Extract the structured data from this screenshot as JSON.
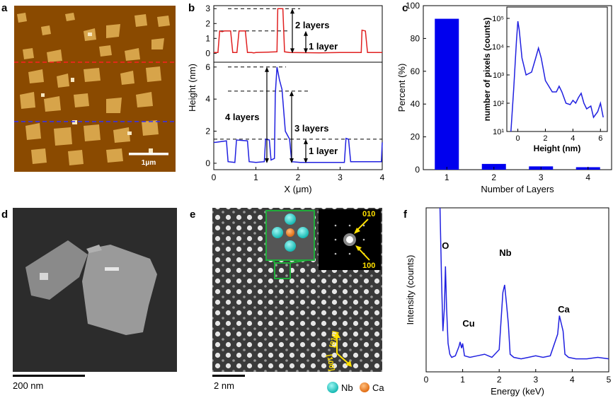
{
  "panels": {
    "a": {
      "label": "a",
      "scalebar": "1μm"
    },
    "b": {
      "label": "b"
    },
    "c": {
      "label": "c"
    },
    "d": {
      "label": "d",
      "scalebar": "200 nm"
    },
    "e": {
      "label": "e",
      "scalebar": "2 nm",
      "saed_010": "010",
      "saed_100": "100",
      "dir_010": "[010]",
      "dir_100": "[100]",
      "legend_nb": "Nb",
      "legend_ca": "Ca"
    },
    "f": {
      "label": "f"
    }
  },
  "chart_data": [
    {
      "id": "b",
      "type": "line",
      "xlabel": "X (μm)",
      "ylabel": "Height (nm)",
      "xlim": [
        0,
        4
      ],
      "xticks": [
        "0",
        "1",
        "2",
        "3",
        "4"
      ],
      "top": {
        "ylim": [
          -0.6,
          3.2
        ],
        "yticks": [
          "0",
          "1",
          "2",
          "3"
        ],
        "color": "#e02020",
        "x": [
          0,
          0.1,
          0.14,
          0.2,
          0.25,
          0.4,
          0.45,
          0.55,
          0.6,
          0.75,
          0.8,
          0.9,
          0.95,
          1.0,
          1.3,
          1.5,
          1.52,
          1.64,
          1.68,
          1.8,
          2.5,
          3.0,
          3.5,
          3.52,
          3.6,
          3.65,
          3.8,
          4.0
        ],
        "y": [
          0.05,
          0.05,
          1.5,
          1.45,
          1.5,
          1.5,
          0.05,
          0.05,
          1.5,
          1.5,
          0.05,
          0.05,
          0.02,
          0.05,
          0.08,
          0.1,
          3.0,
          3.0,
          0.1,
          0.05,
          0.03,
          0.05,
          0.05,
          1.55,
          1.5,
          0.05,
          0.05,
          0.05
        ],
        "annotations": [
          "2 layers",
          "1 layer"
        ]
      },
      "bottom": {
        "ylim": [
          -0.4,
          6.3
        ],
        "yticks": [
          "0",
          "2",
          "4",
          "6"
        ],
        "color": "#2020e0",
        "x": [
          0,
          0.04,
          0.3,
          0.34,
          0.5,
          0.54,
          0.8,
          0.84,
          1.0,
          1.2,
          1.23,
          1.32,
          1.36,
          1.44,
          1.46,
          1.5,
          1.56,
          1.62,
          1.7,
          1.76,
          1.8,
          1.85,
          2.05,
          2.1,
          3.1,
          3.14,
          3.2,
          3.25,
          3.98,
          4.0
        ],
        "y": [
          1.3,
          1.3,
          1.4,
          0.1,
          0.05,
          1.45,
          1.4,
          0.1,
          0.05,
          0.1,
          1.5,
          1.45,
          0.2,
          0.3,
          4.3,
          6.0,
          5.2,
          4.6,
          2.0,
          1.7,
          1.5,
          0.1,
          0.05,
          0.05,
          0.05,
          1.55,
          1.5,
          0.1,
          0.1,
          1.3
        ],
        "annotations": [
          "4 layers",
          "3 layers",
          "1 layer"
        ]
      }
    },
    {
      "id": "c",
      "type": "bar",
      "xlabel": "Number of Layers",
      "ylabel": "Percent (%)",
      "ylim": [
        0,
        100
      ],
      "xlim": [
        0.5,
        4.5
      ],
      "categories": [
        "1",
        "2",
        "3",
        "4"
      ],
      "values": [
        92,
        3.5,
        2,
        1.5
      ],
      "yticks": [
        "0",
        "20",
        "40",
        "60",
        "80",
        "100"
      ],
      "color": "#0000ee",
      "inset": {
        "type": "line",
        "xlabel": "Height (nm)",
        "ylabel": "number of pixels (counts)",
        "xlim": [
          -0.8,
          6.5
        ],
        "ylim_log10": [
          1,
          5.4
        ],
        "xticks": [
          "0",
          "2",
          "4",
          "6"
        ],
        "yticks": [
          "10¹",
          "10²",
          "10³",
          "10⁴",
          "10⁵"
        ],
        "color": "#2020e0",
        "x": [
          -0.5,
          -0.3,
          -0.1,
          0,
          0.1,
          0.3,
          0.6,
          1.0,
          1.3,
          1.5,
          1.7,
          2.0,
          2.5,
          2.8,
          3.0,
          3.2,
          3.5,
          3.8,
          4.0,
          4.2,
          4.4,
          4.6,
          4.8,
          5.0,
          5.3,
          5.5,
          5.8,
          6.0,
          6.2
        ],
        "y_log10": [
          1.0,
          2.5,
          4.2,
          4.9,
          4.6,
          3.6,
          3.0,
          3.1,
          3.6,
          3.95,
          3.6,
          2.8,
          2.4,
          2.4,
          2.6,
          2.4,
          2.0,
          1.95,
          2.1,
          2.0,
          2.2,
          2.35,
          2.0,
          1.8,
          1.9,
          1.5,
          1.7,
          2.0,
          1.5
        ]
      }
    },
    {
      "id": "f",
      "type": "line",
      "xlabel": "Energy (keV)",
      "ylabel": "Intensity (counts)",
      "xlim": [
        0,
        5
      ],
      "xticks": [
        "0",
        "1",
        "2",
        "3",
        "4",
        "5"
      ],
      "ylim": [
        0,
        100
      ],
      "color": "#2020e0",
      "x": [
        0.38,
        0.42,
        0.46,
        0.5,
        0.53,
        0.56,
        0.6,
        0.65,
        0.7,
        0.8,
        0.9,
        0.93,
        0.97,
        1.0,
        1.05,
        1.2,
        1.4,
        1.6,
        1.8,
        2.0,
        2.1,
        2.15,
        2.2,
        2.25,
        2.3,
        2.4,
        2.6,
        2.8,
        3.0,
        3.2,
        3.4,
        3.6,
        3.65,
        3.7,
        3.75,
        3.8,
        3.9,
        4.1,
        4.4,
        4.7,
        5.0
      ],
      "y": [
        100,
        55,
        20,
        35,
        62,
        35,
        12,
        5,
        3,
        4,
        10,
        13,
        9,
        12,
        4,
        3,
        4,
        5,
        3,
        8,
        45,
        50,
        38,
        25,
        5,
        3,
        2,
        3,
        4,
        3,
        4,
        18,
        30,
        25,
        20,
        5,
        3,
        2,
        2,
        3,
        2
      ],
      "peaks": [
        {
          "label": "O",
          "x": 0.53
        },
        {
          "label": "Cu",
          "x": 0.93
        },
        {
          "label": "Nb",
          "x": 2.17
        },
        {
          "label": "Ca",
          "x": 3.69
        }
      ]
    }
  ]
}
